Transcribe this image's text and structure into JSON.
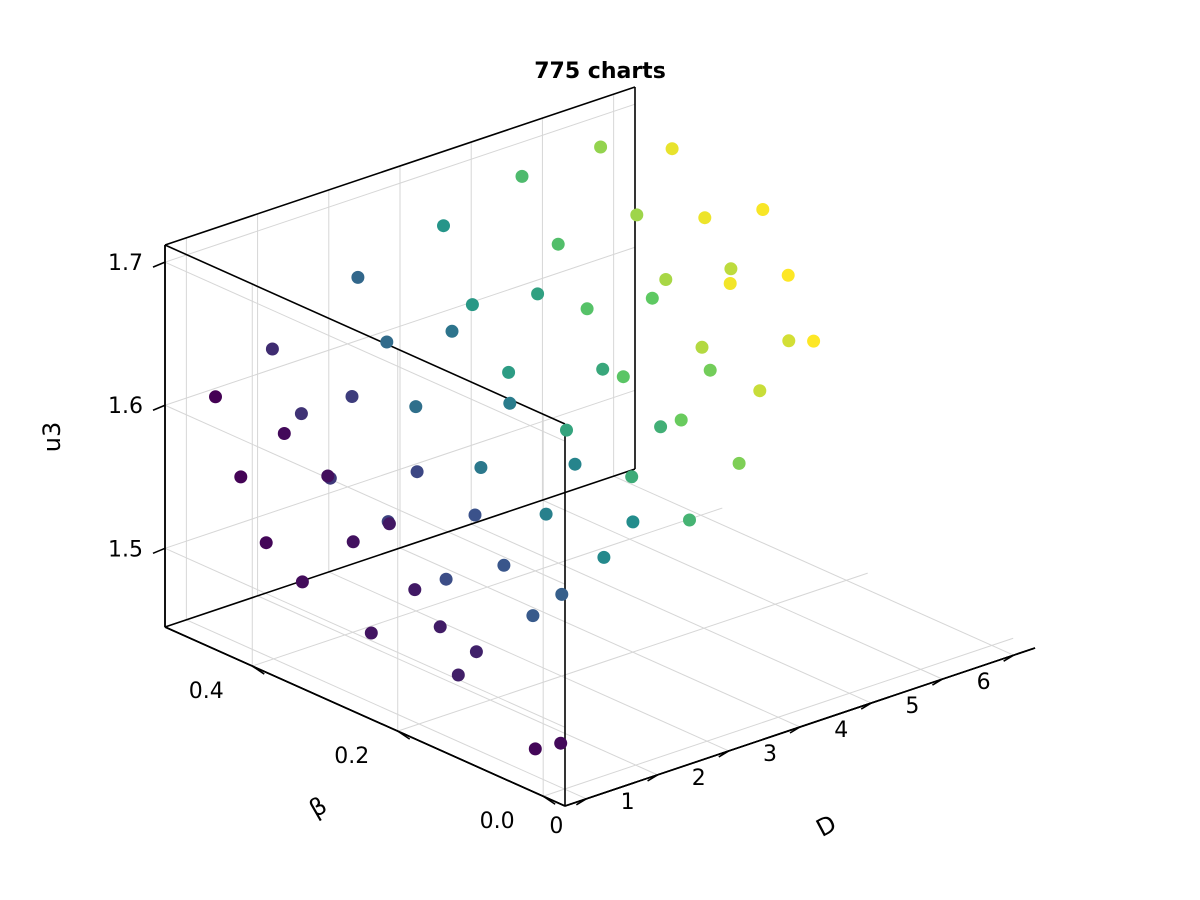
{
  "chart_data": {
    "type": "scatter",
    "projection": "3d",
    "title": "775 charts",
    "axes": {
      "x": {
        "label": "D",
        "ticks": [
          "0",
          "1",
          "2",
          "3",
          "4",
          "5",
          "6"
        ],
        "range": [
          -0.3,
          6.3
        ]
      },
      "y": {
        "label": "β",
        "ticks": [
          "0.0",
          "0.2",
          "0.4"
        ],
        "range": [
          -0.03,
          0.52
        ]
      },
      "z": {
        "label": "u3",
        "ticks": [
          "1.5",
          "1.6",
          "1.7"
        ],
        "range": [
          1.445,
          1.712
        ]
      }
    },
    "grid": true,
    "legend": "none",
    "colormap": "viridis",
    "colormap_stops": [
      "#440154",
      "#3b528b",
      "#21918c",
      "#5ec962",
      "#fde725"
    ],
    "series": [
      {
        "marker": "circle",
        "note_count": 775,
        "points": [
          [
            0.0,
            0.48,
            1.61
          ],
          [
            0.05,
            0.45,
            1.56
          ],
          [
            0.1,
            0.42,
            1.52
          ],
          [
            0.15,
            0.4,
            1.6
          ],
          [
            0.2,
            0.38,
            1.5
          ],
          [
            0.25,
            0.35,
            1.58
          ],
          [
            0.3,
            0.32,
            1.54
          ],
          [
            0.35,
            0.3,
            1.48
          ],
          [
            0.4,
            0.28,
            1.56
          ],
          [
            0.45,
            0.25,
            1.52
          ],
          [
            0.5,
            0.22,
            1.5
          ],
          [
            0.55,
            0.2,
            1.47
          ],
          [
            0.6,
            0.18,
            1.49
          ],
          [
            0.1,
            0.05,
            1.46
          ],
          [
            0.15,
            0.02,
            1.47
          ],
          [
            0.8,
            0.48,
            1.63
          ],
          [
            0.9,
            0.45,
            1.59
          ],
          [
            1.0,
            0.42,
            1.55
          ],
          [
            1.1,
            0.4,
            1.61
          ],
          [
            1.2,
            0.36,
            1.53
          ],
          [
            1.3,
            0.33,
            1.57
          ],
          [
            1.4,
            0.3,
            1.5
          ],
          [
            1.5,
            0.27,
            1.55
          ],
          [
            1.6,
            0.24,
            1.52
          ],
          [
            1.7,
            0.21,
            1.49
          ],
          [
            1.8,
            0.18,
            1.51
          ],
          [
            2.0,
            0.48,
            1.66
          ],
          [
            2.1,
            0.45,
            1.62
          ],
          [
            2.2,
            0.42,
            1.58
          ],
          [
            2.3,
            0.38,
            1.64
          ],
          [
            2.4,
            0.35,
            1.55
          ],
          [
            2.5,
            0.32,
            1.6
          ],
          [
            2.6,
            0.28,
            1.53
          ],
          [
            2.7,
            0.25,
            1.57
          ],
          [
            2.8,
            0.22,
            1.51
          ],
          [
            2.9,
            0.19,
            1.54
          ],
          [
            3.1,
            0.47,
            1.68
          ],
          [
            3.2,
            0.44,
            1.63
          ],
          [
            3.3,
            0.4,
            1.59
          ],
          [
            3.4,
            0.37,
            1.65
          ],
          [
            3.5,
            0.34,
            1.56
          ],
          [
            3.6,
            0.3,
            1.61
          ],
          [
            3.7,
            0.27,
            1.54
          ],
          [
            3.8,
            0.24,
            1.58
          ],
          [
            3.9,
            0.21,
            1.52
          ],
          [
            4.1,
            0.46,
            1.7
          ],
          [
            4.2,
            0.42,
            1.66
          ],
          [
            4.3,
            0.39,
            1.62
          ],
          [
            4.4,
            0.35,
            1.58
          ],
          [
            4.5,
            0.32,
            1.64
          ],
          [
            4.6,
            0.29,
            1.56
          ],
          [
            4.7,
            0.26,
            1.6
          ],
          [
            4.8,
            0.23,
            1.54
          ],
          [
            5.0,
            0.44,
            1.71
          ],
          [
            5.1,
            0.4,
            1.67
          ],
          [
            5.2,
            0.37,
            1.63
          ],
          [
            5.3,
            0.33,
            1.59
          ],
          [
            5.4,
            0.3,
            1.65
          ],
          [
            5.5,
            0.27,
            1.57
          ],
          [
            5.6,
            0.24,
            1.61
          ],
          [
            5.8,
            0.42,
            1.7
          ],
          [
            5.85,
            0.38,
            1.66
          ],
          [
            5.9,
            0.35,
            1.62
          ],
          [
            5.95,
            0.31,
            1.68
          ],
          [
            6.0,
            0.28,
            1.64
          ],
          [
            6.05,
            0.25,
            1.6
          ]
        ]
      }
    ]
  }
}
